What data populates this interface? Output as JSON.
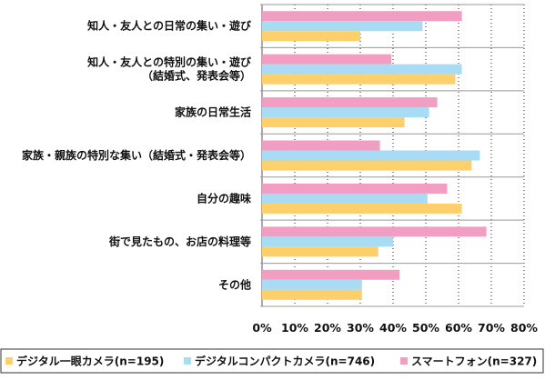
{
  "chart_data": {
    "type": "bar",
    "orientation": "horizontal",
    "title": "",
    "xlabel": "",
    "ylabel": "",
    "xlim": [
      0,
      80
    ],
    "x_ticks": [
      "0%",
      "10%",
      "20%",
      "30%",
      "40%",
      "50%",
      "60%",
      "70%",
      "80%"
    ],
    "grid": true,
    "legend_position": "bottom",
    "categories": [
      [
        "知人・友人との日常の集い・遊び"
      ],
      [
        "知人・友人との特別の集い・遊び",
        "（結婚式、発表会等）"
      ],
      [
        "家族の日常生活"
      ],
      [
        "家族・親族の特別な集い（結婚式・発表会等）"
      ],
      [
        "自分の趣味"
      ],
      [
        "街で見たもの、お店の料理等"
      ],
      [
        "その他"
      ]
    ],
    "series": [
      {
        "name": "スマートフォン(n=327)",
        "color": "#f19ec2",
        "values": [
          61,
          39.5,
          53.5,
          36,
          56.5,
          68.5,
          42
        ]
      },
      {
        "name": "デジタルコンパクトカメラ(n=746)",
        "color": "#a8dbf4",
        "values": [
          49,
          61,
          51,
          66.5,
          50.5,
          40,
          30.5
        ]
      },
      {
        "name": "デジタル一眼カメラ(n=195)",
        "color": "#fdd06b",
        "values": [
          30,
          59,
          43.5,
          64,
          61,
          35.5,
          30.5
        ]
      }
    ],
    "legend_order": [
      2,
      1,
      0
    ]
  }
}
